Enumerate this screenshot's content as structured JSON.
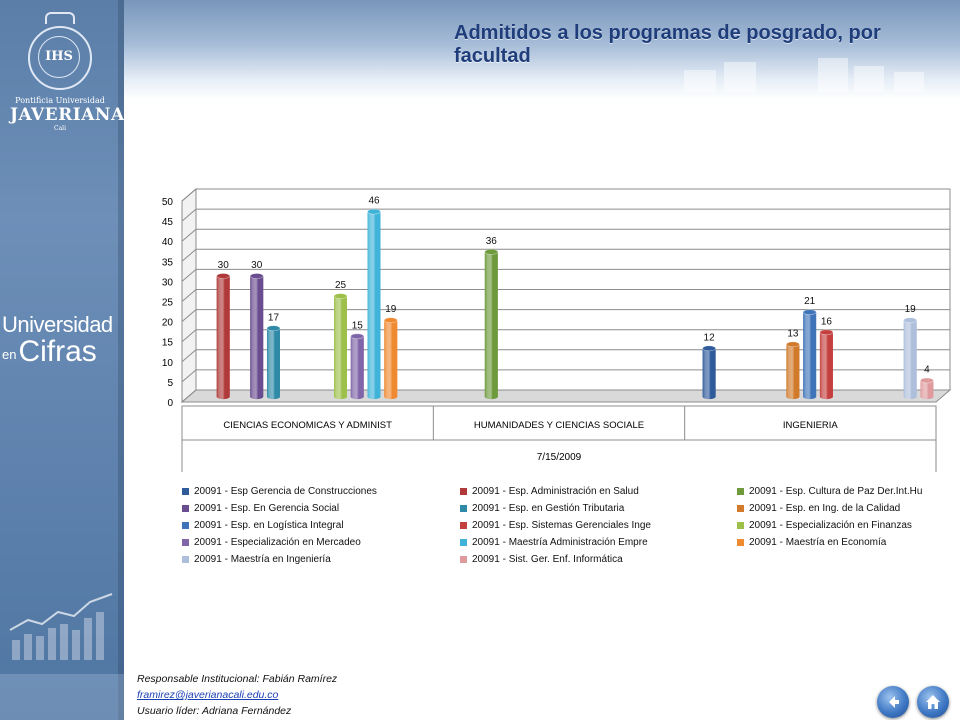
{
  "page": {
    "title": "Admitidos a los programas de posgrado, por facultad"
  },
  "logo": {
    "line1": "Pontificia Universidad",
    "line2": "JAVERIANA",
    "line3": "Cali",
    "seal_text": "IHS"
  },
  "brand": {
    "line1": "Universidad",
    "line2": "en",
    "line3": "Cifras"
  },
  "footer": {
    "responsable": "Responsable Institucional: Fabián Ramírez",
    "email": "framirez@javerianacali.edu.co",
    "usuario": "Usuario líder: Adriana Fernández"
  },
  "nav": {
    "back_icon": "back-arrow-icon",
    "home_icon": "home-icon"
  },
  "chart_data": {
    "type": "bar",
    "title": "",
    "xlabel": "7/15/2009",
    "ylabel": "",
    "ylim": [
      0,
      50
    ],
    "yticks": [
      0,
      5,
      10,
      15,
      20,
      25,
      30,
      35,
      40,
      45,
      50
    ],
    "grid": true,
    "legend_position": "bottom",
    "categories": [
      "CIENCIAS ECONOMICAS Y ADMINIST",
      "HUMANIDADES Y CIENCIAS SOCIALE",
      "INGENIERIA"
    ],
    "series": [
      {
        "name": "20091 - Esp Gerencia de Construcciones",
        "color": "#2f5b9b",
        "values": [
          null,
          null,
          12
        ]
      },
      {
        "name": "20091 - Esp. Administración en Salud",
        "color": "#b03a3a",
        "values": [
          30,
          null,
          null
        ]
      },
      {
        "name": "20091 - Esp. Cultura de Paz Der.Int.Hu",
        "color": "#6e9a3c",
        "values": [
          null,
          36,
          null
        ]
      },
      {
        "name": "20091 - Esp. En  Gerencia Social",
        "color": "#6a4d90",
        "values": [
          30,
          null,
          null
        ]
      },
      {
        "name": "20091 - Esp. en Gestión Tributaria",
        "color": "#2f8aa8",
        "values": [
          17,
          null,
          null
        ]
      },
      {
        "name": "20091 - Esp. en Ing. de la Calidad",
        "color": "#d07a2a",
        "values": [
          null,
          null,
          13
        ]
      },
      {
        "name": "20091 - Esp. en Logística Integral",
        "color": "#3f74b8",
        "values": [
          null,
          null,
          21
        ]
      },
      {
        "name": "20091 - Esp. Sistemas Gerenciales Inge",
        "color": "#c4403f",
        "values": [
          null,
          null,
          16
        ]
      },
      {
        "name": "20091 - Especialización en Finanzas",
        "color": "#9cc04a",
        "values": [
          25,
          null,
          null
        ]
      },
      {
        "name": "20091 - Especialización en Mercadeo",
        "color": "#8065a8",
        "values": [
          15,
          null,
          null
        ]
      },
      {
        "name": "20091 - Maestría  Administración Empre",
        "color": "#3fb3d8",
        "values": [
          46,
          null,
          null
        ]
      },
      {
        "name": "20091 - Maestría en Economía",
        "color": "#ef8a30",
        "values": [
          19,
          null,
          null
        ]
      },
      {
        "name": "20091 - Maestría en Ingeniería",
        "color": "#aebfdc",
        "values": [
          null,
          null,
          19
        ]
      },
      {
        "name": "20091 - Sist. Ger.  Enf. Informática",
        "color": "#de9a9c",
        "values": [
          null,
          null,
          4
        ]
      }
    ]
  }
}
